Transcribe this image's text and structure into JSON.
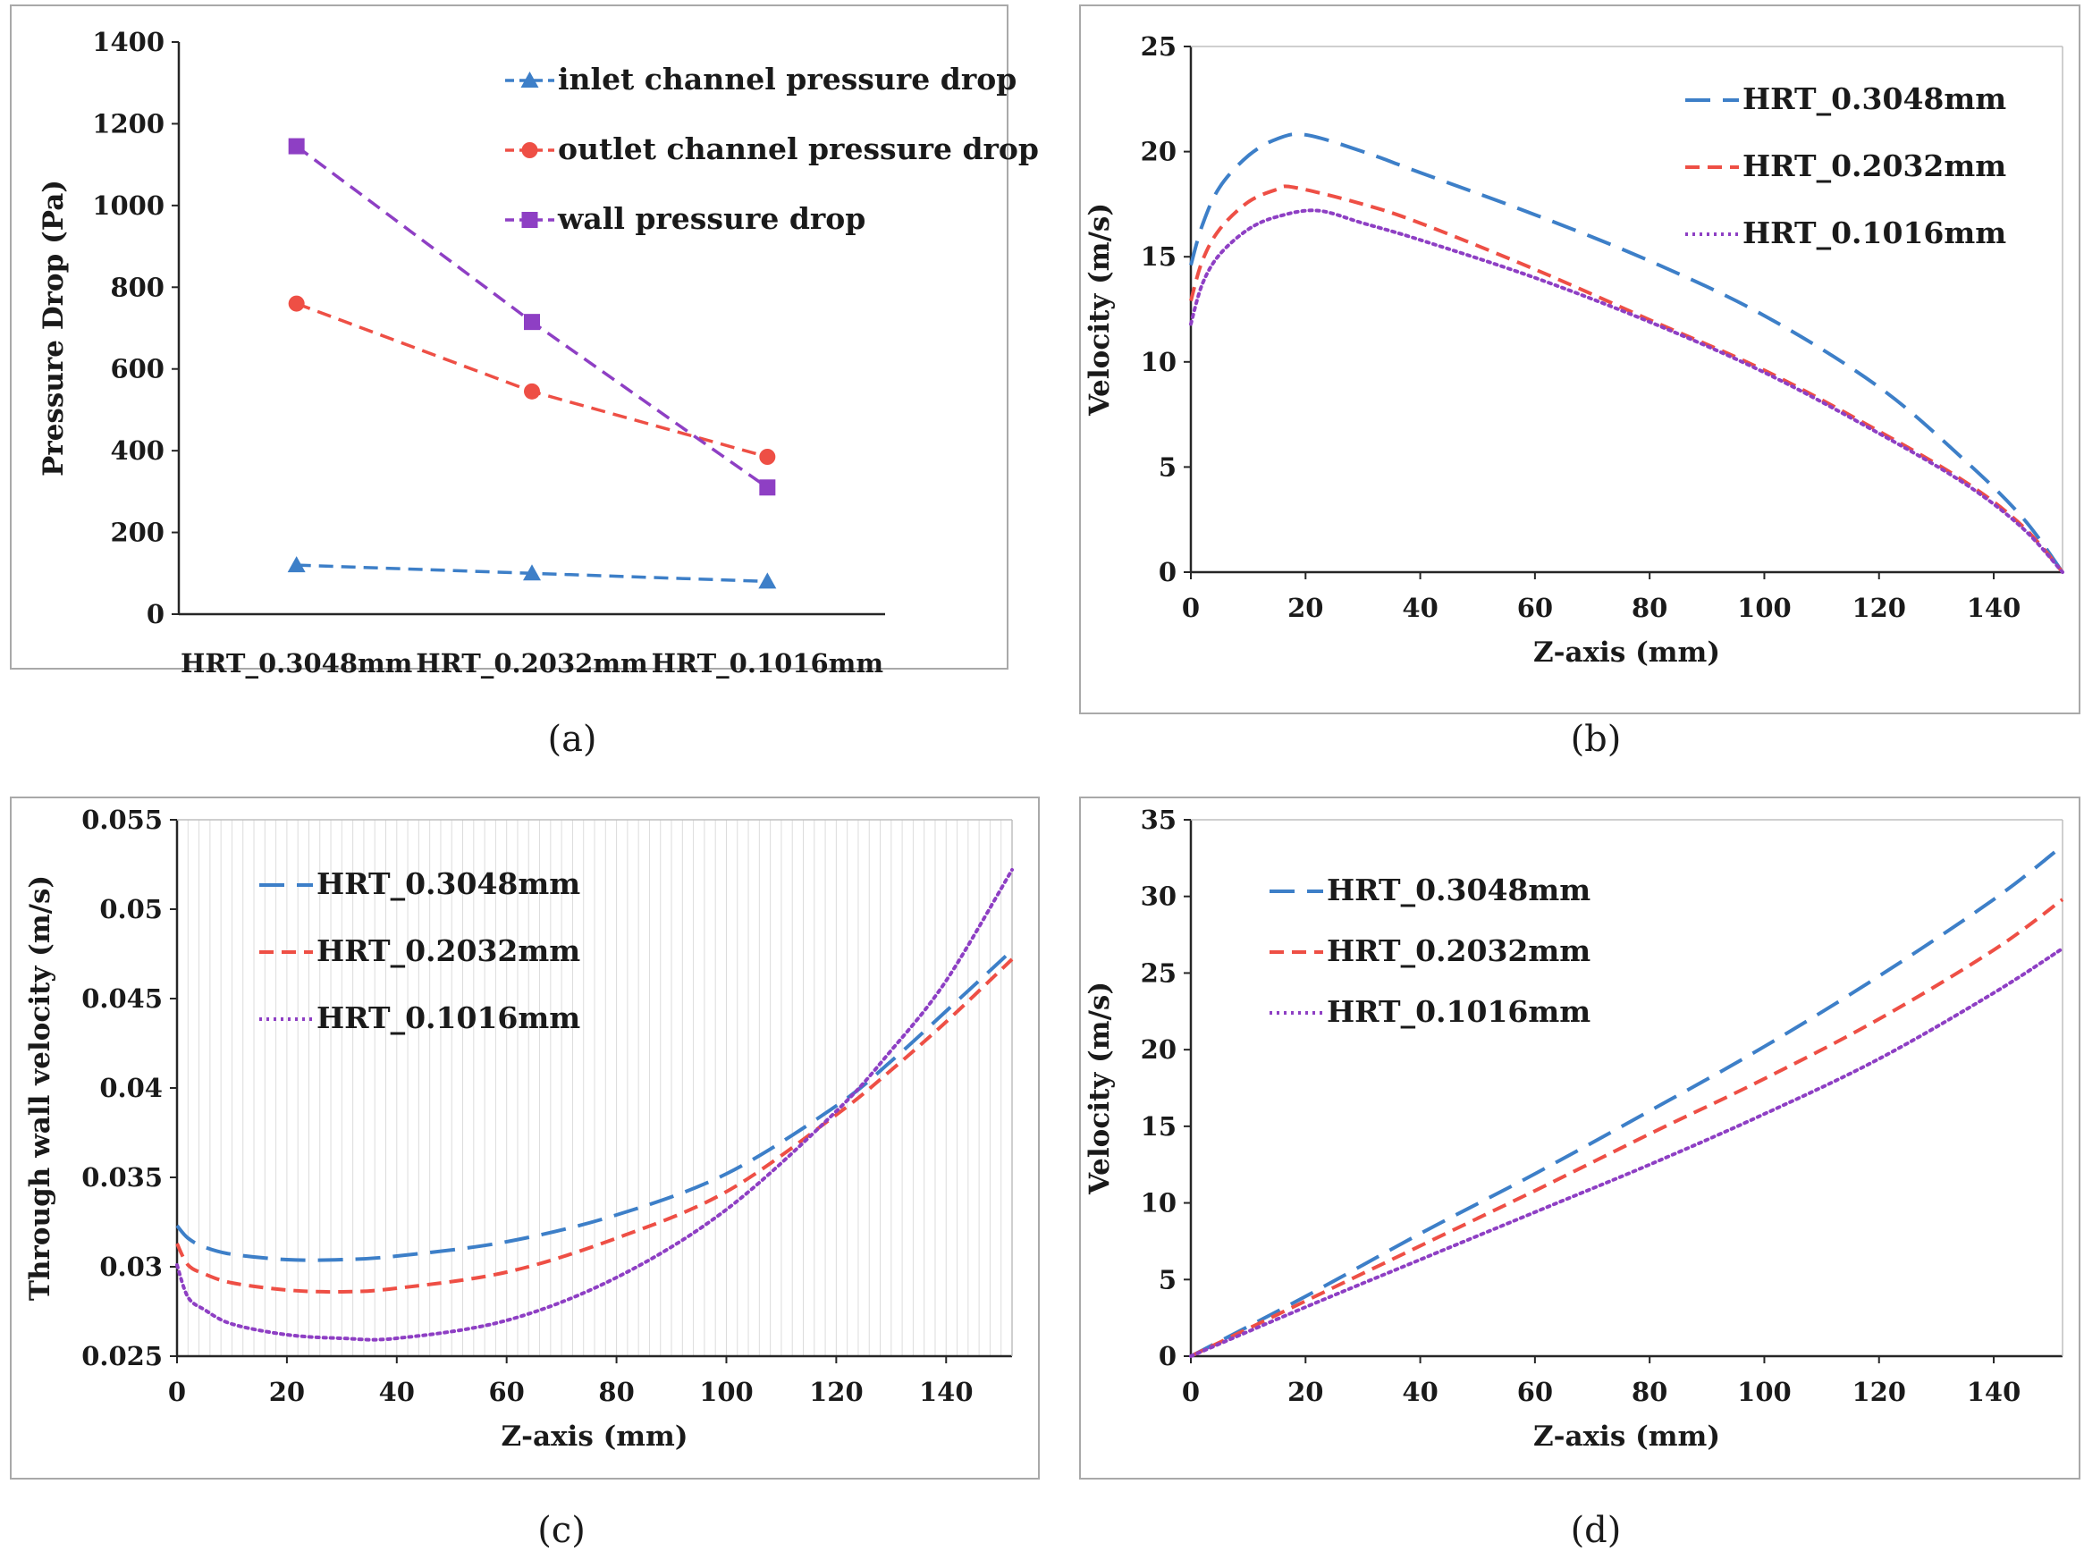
{
  "colors": {
    "blue": "#3d7fc8",
    "red": "#ee4f45",
    "purple": "#8e3fc4",
    "axis": "#262626",
    "frame": "#a9a9a9",
    "gridline": "#dcdcdc"
  },
  "chart_data": [
    {
      "id": "a",
      "type": "line",
      "caption": "(a)",
      "categories": [
        "HRT_0.3048mm",
        "HRT_0.2032mm",
        "HRT_0.1016mm"
      ],
      "ylabel": "Pressure Drop (Pa)",
      "xlabel": "",
      "ylim": [
        0,
        1400
      ],
      "yticks": [
        "0",
        "200",
        "400",
        "600",
        "800",
        "1000",
        "1200",
        "1400"
      ],
      "legend_position": "top-right",
      "series": [
        {
          "name": "inlet channel pressure drop",
          "color": "#3d7fc8",
          "marker": "triangle",
          "dash": "dashed",
          "values": [
            120,
            100,
            80
          ]
        },
        {
          "name": "outlet channel pressure drop",
          "color": "#ee4f45",
          "marker": "circle",
          "dash": "dashed",
          "values": [
            760,
            545,
            385
          ]
        },
        {
          "name": "wall pressure drop",
          "color": "#8e3fc4",
          "marker": "square",
          "dash": "dashed",
          "values": [
            1145,
            715,
            310
          ]
        }
      ]
    },
    {
      "id": "b",
      "type": "line",
      "caption": "(b)",
      "xlabel": "Z-axis (mm)",
      "ylabel": "Velocity (m/s)",
      "xlim": [
        0,
        152
      ],
      "ylim": [
        0,
        25
      ],
      "xticks": [
        "0",
        "20",
        "40",
        "60",
        "80",
        "100",
        "120",
        "140"
      ],
      "yticks": [
        "0",
        "5",
        "10",
        "15",
        "20",
        "25"
      ],
      "legend_position": "top-right",
      "series": [
        {
          "name": "HRT_0.3048mm",
          "color": "#3d7fc8",
          "dash": "long-dash",
          "x": [
            0,
            2,
            5,
            10,
            15,
            20,
            30,
            40,
            60,
            80,
            100,
            120,
            135,
            145,
            152
          ],
          "y": [
            14.6,
            16.5,
            18.3,
            19.8,
            20.6,
            20.8,
            20.0,
            19.0,
            17.0,
            14.8,
            12.2,
            8.8,
            5.3,
            2.6,
            0
          ]
        },
        {
          "name": "HRT_0.2032mm",
          "color": "#ee4f45",
          "dash": "dashed",
          "x": [
            0,
            2,
            5,
            10,
            15,
            18,
            30,
            40,
            60,
            80,
            100,
            120,
            135,
            145,
            152
          ],
          "y": [
            12.9,
            14.8,
            16.3,
            17.6,
            18.2,
            18.3,
            17.5,
            16.6,
            14.4,
            12.0,
            9.6,
            6.7,
            4.3,
            2.2,
            0
          ]
        },
        {
          "name": "HRT_0.1016mm",
          "color": "#8e3fc4",
          "dash": "dotted",
          "x": [
            0,
            2,
            5,
            10,
            15,
            22,
            30,
            40,
            60,
            80,
            100,
            120,
            135,
            145,
            152
          ],
          "y": [
            11.8,
            13.7,
            15.1,
            16.3,
            16.9,
            17.2,
            16.6,
            15.8,
            14.0,
            11.9,
            9.5,
            6.6,
            4.2,
            2.1,
            0
          ]
        }
      ]
    },
    {
      "id": "c",
      "type": "line",
      "caption": "(c)",
      "xlabel": "Z-axis (mm)",
      "ylabel": "Through wall velocity (m/s)",
      "xlim": [
        0,
        152
      ],
      "ylim": [
        0.025,
        0.055
      ],
      "xticks": [
        "0",
        "20",
        "40",
        "60",
        "80",
        "100",
        "120",
        "140"
      ],
      "yticks": [
        "0.025",
        "0.03",
        "0.035",
        "0.04",
        "0.045",
        "0.05",
        "0.055"
      ],
      "grid": "vertical",
      "legend_position": "top-left",
      "series": [
        {
          "name": "HRT_0.3048mm",
          "color": "#3d7fc8",
          "dash": "long-dash",
          "x": [
            0,
            2,
            5,
            10,
            20,
            30,
            40,
            60,
            80,
            100,
            120,
            130,
            140,
            152
          ],
          "y": [
            0.0323,
            0.0316,
            0.0311,
            0.0307,
            0.0304,
            0.0304,
            0.0306,
            0.0314,
            0.0329,
            0.0352,
            0.039,
            0.0415,
            0.0443,
            0.0477
          ]
        },
        {
          "name": "HRT_0.2032mm",
          "color": "#ee4f45",
          "dash": "dashed",
          "x": [
            0,
            2,
            5,
            10,
            20,
            30,
            40,
            60,
            80,
            100,
            120,
            130,
            140,
            152
          ],
          "y": [
            0.0313,
            0.0301,
            0.0296,
            0.0291,
            0.0287,
            0.0286,
            0.0288,
            0.0297,
            0.0316,
            0.0342,
            0.0385,
            0.041,
            0.0437,
            0.0472
          ]
        },
        {
          "name": "HRT_0.1016mm",
          "color": "#8e3fc4",
          "dash": "dotted",
          "x": [
            0,
            2,
            5,
            10,
            20,
            30,
            40,
            60,
            80,
            100,
            120,
            130,
            140,
            152
          ],
          "y": [
            0.0301,
            0.0283,
            0.0276,
            0.0268,
            0.0262,
            0.026,
            0.026,
            0.027,
            0.0294,
            0.0332,
            0.0387,
            0.0421,
            0.046,
            0.0522
          ]
        }
      ]
    },
    {
      "id": "d",
      "type": "line",
      "caption": "(d)",
      "xlabel": "Z-axis (mm)",
      "ylabel": "Velocity (m/s)",
      "xlim": [
        0,
        152
      ],
      "ylim": [
        0,
        35
      ],
      "xticks": [
        "0",
        "20",
        "40",
        "60",
        "80",
        "100",
        "120",
        "140"
      ],
      "yticks": [
        "0",
        "5",
        "10",
        "15",
        "20",
        "25",
        "30",
        "35"
      ],
      "legend_position": "top-left",
      "series": [
        {
          "name": "HRT_0.3048mm",
          "color": "#3d7fc8",
          "dash": "long-dash",
          "x": [
            0,
            20,
            40,
            60,
            80,
            100,
            120,
            140,
            152
          ],
          "y": [
            0,
            3.9,
            8.0,
            11.9,
            16.0,
            20.2,
            24.8,
            29.8,
            33.3
          ]
        },
        {
          "name": "HRT_0.2032mm",
          "color": "#ee4f45",
          "dash": "dashed",
          "x": [
            0,
            20,
            40,
            60,
            80,
            100,
            120,
            140,
            152
          ],
          "y": [
            0,
            3.6,
            7.2,
            10.8,
            14.5,
            18.1,
            22.0,
            26.5,
            29.8
          ]
        },
        {
          "name": "HRT_0.1016mm",
          "color": "#8e3fc4",
          "dash": "dotted",
          "x": [
            0,
            20,
            40,
            60,
            80,
            100,
            120,
            140,
            152
          ],
          "y": [
            0,
            3.2,
            6.3,
            9.4,
            12.5,
            15.8,
            19.4,
            23.7,
            26.6
          ]
        }
      ]
    }
  ]
}
